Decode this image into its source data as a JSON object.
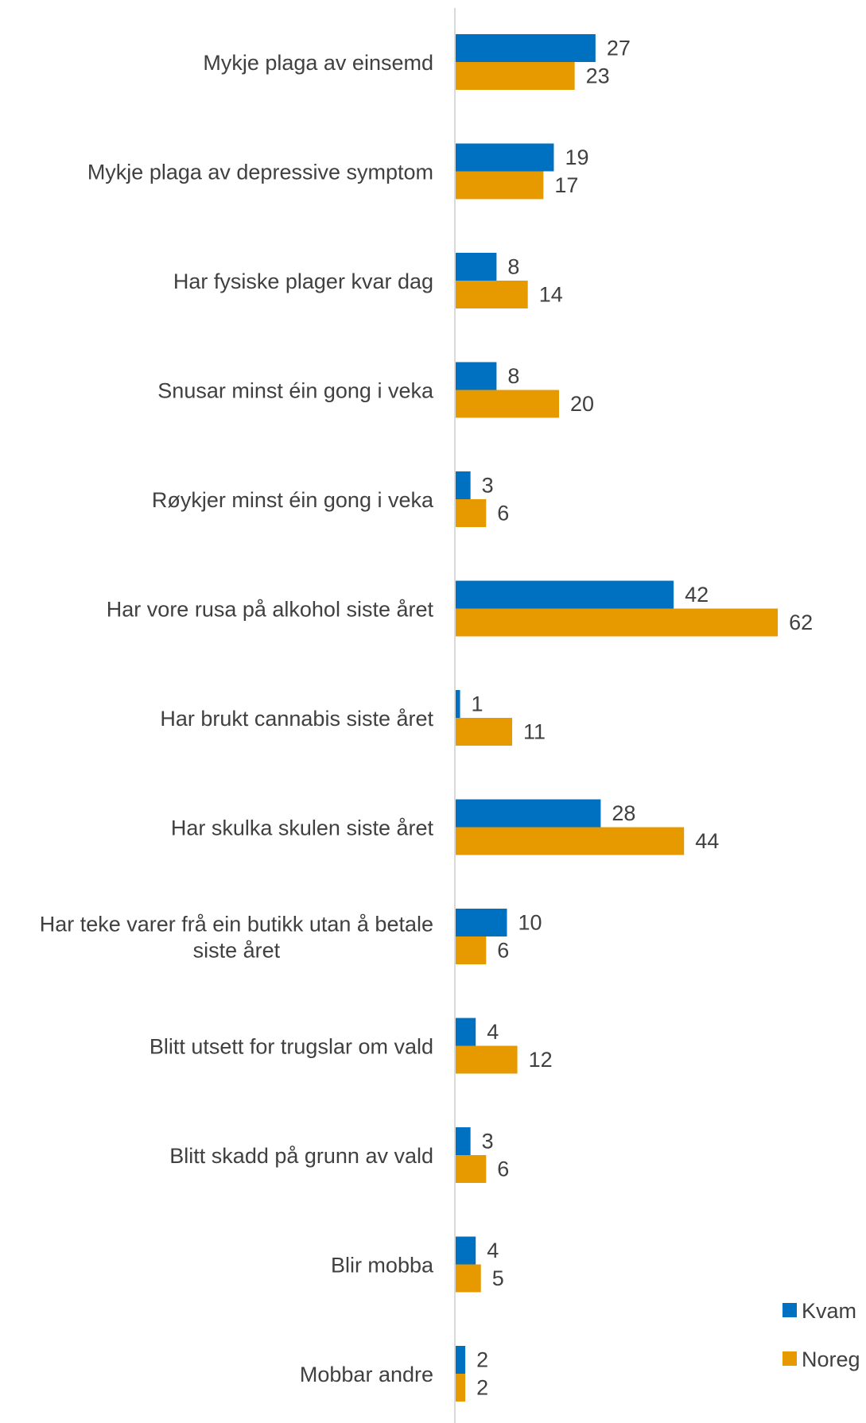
{
  "chart_data": {
    "type": "bar",
    "orientation": "horizontal",
    "categories": [
      "Mykje plaga av einsemd",
      "Mykje plaga av depressive symptom",
      "Har fysiske plager kvar dag",
      "Snusar minst éin gong i veka",
      "Røykjer minst éin gong i veka",
      "Har vore rusa på alkohol siste året",
      "Har brukt cannabis siste året",
      "Har skulka skulen siste året",
      "Har teke varer frå ein butikk utan å betale siste året",
      "Blitt utsett for trugslar om vald",
      "Blitt skadd på grunn av vald",
      "Blir mobba",
      "Mobbar andre"
    ],
    "series": [
      {
        "name": "Kvam",
        "color": "#0070C0",
        "values": [
          27,
          19,
          8,
          8,
          3,
          42,
          1,
          28,
          10,
          4,
          3,
          4,
          2
        ]
      },
      {
        "name": "Noreg",
        "color": "#E69A00",
        "values": [
          23,
          17,
          14,
          20,
          6,
          62,
          11,
          44,
          6,
          12,
          6,
          5,
          2
        ]
      }
    ],
    "xlim": [
      0,
      80
    ],
    "grid": false,
    "legend_position": "bottom-right"
  }
}
